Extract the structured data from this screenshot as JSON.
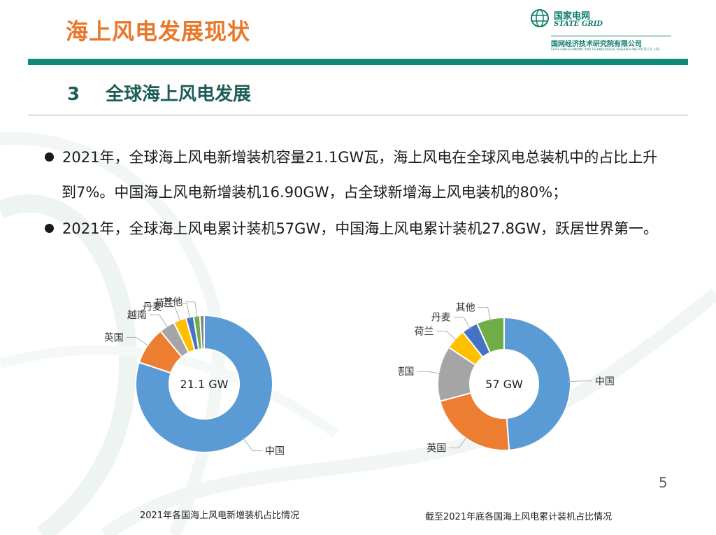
{
  "header": {
    "title": "海上风电发展现状",
    "logo_cn": "国家电网",
    "logo_en": "STATE GRID",
    "logo_org_cn": "国网经济技术研究院有限公司",
    "logo_org_en": "STATE GRID ECONOMIC AND TECHNOLOGICAL RESEARCH INSTITUTE CO., LTD."
  },
  "section": {
    "number": "3",
    "title": "全球海上风电发展"
  },
  "bullets": {
    "b1_line1": "2021年，全球海上风电新增装机容量21.1GW瓦，海上风电在全球风电总装机中的占比上升",
    "b1_line2": "到7%。中国海上风电新增装机16.90GW，占全球新增海上风电装机的80%；",
    "b2_line1": "2021年，全球海上风电累计装机57GW，中国海上风电累计装机27.8GW，跃居世界第一。"
  },
  "page_number": "5",
  "colors": {
    "title": "#e8782a",
    "brand_green": "#0f8a78",
    "blue": "#5b9bd5",
    "orange": "#ed7d31",
    "gray": "#a5a5a5",
    "yellow": "#ffc000",
    "dark_blue": "#4472c4",
    "green": "#70ad47"
  },
  "chart_data": [
    {
      "type": "pie",
      "donut": true,
      "center_label": "21.1 GW",
      "caption": "2021年各国海上风电新增装机占比情况",
      "slices": [
        {
          "label": "中国",
          "value": 80.1,
          "color": "#5b9bd5"
        },
        {
          "label": "英国",
          "value": 8.9,
          "color": "#ed7d31"
        },
        {
          "label": "越南",
          "value": 3.7,
          "color": "#a5a5a5"
        },
        {
          "label": "丹麦",
          "value": 3.0,
          "color": "#ffc000"
        },
        {
          "label": "荷兰",
          "value": 1.8,
          "color": "#4472c4"
        },
        {
          "label": "其他",
          "value": 1.5,
          "color": "#70ad47"
        },
        {
          "label": "",
          "value": 1.0,
          "color": "#7f7f7f"
        }
      ]
    },
    {
      "type": "pie",
      "donut": true,
      "center_label": "57 GW",
      "caption": "截至2021年底各国海上风电累计装机占比情况",
      "slices": [
        {
          "label": "中国",
          "value": 48.8,
          "color": "#5b9bd5"
        },
        {
          "label": "英国",
          "value": 22.0,
          "color": "#ed7d31"
        },
        {
          "label": "德国",
          "value": 13.5,
          "color": "#a5a5a5"
        },
        {
          "label": "荷兰",
          "value": 5.0,
          "color": "#ffc000"
        },
        {
          "label": "丹麦",
          "value": 4.0,
          "color": "#4472c4"
        },
        {
          "label": "其他",
          "value": 6.7,
          "color": "#70ad47"
        }
      ]
    }
  ]
}
